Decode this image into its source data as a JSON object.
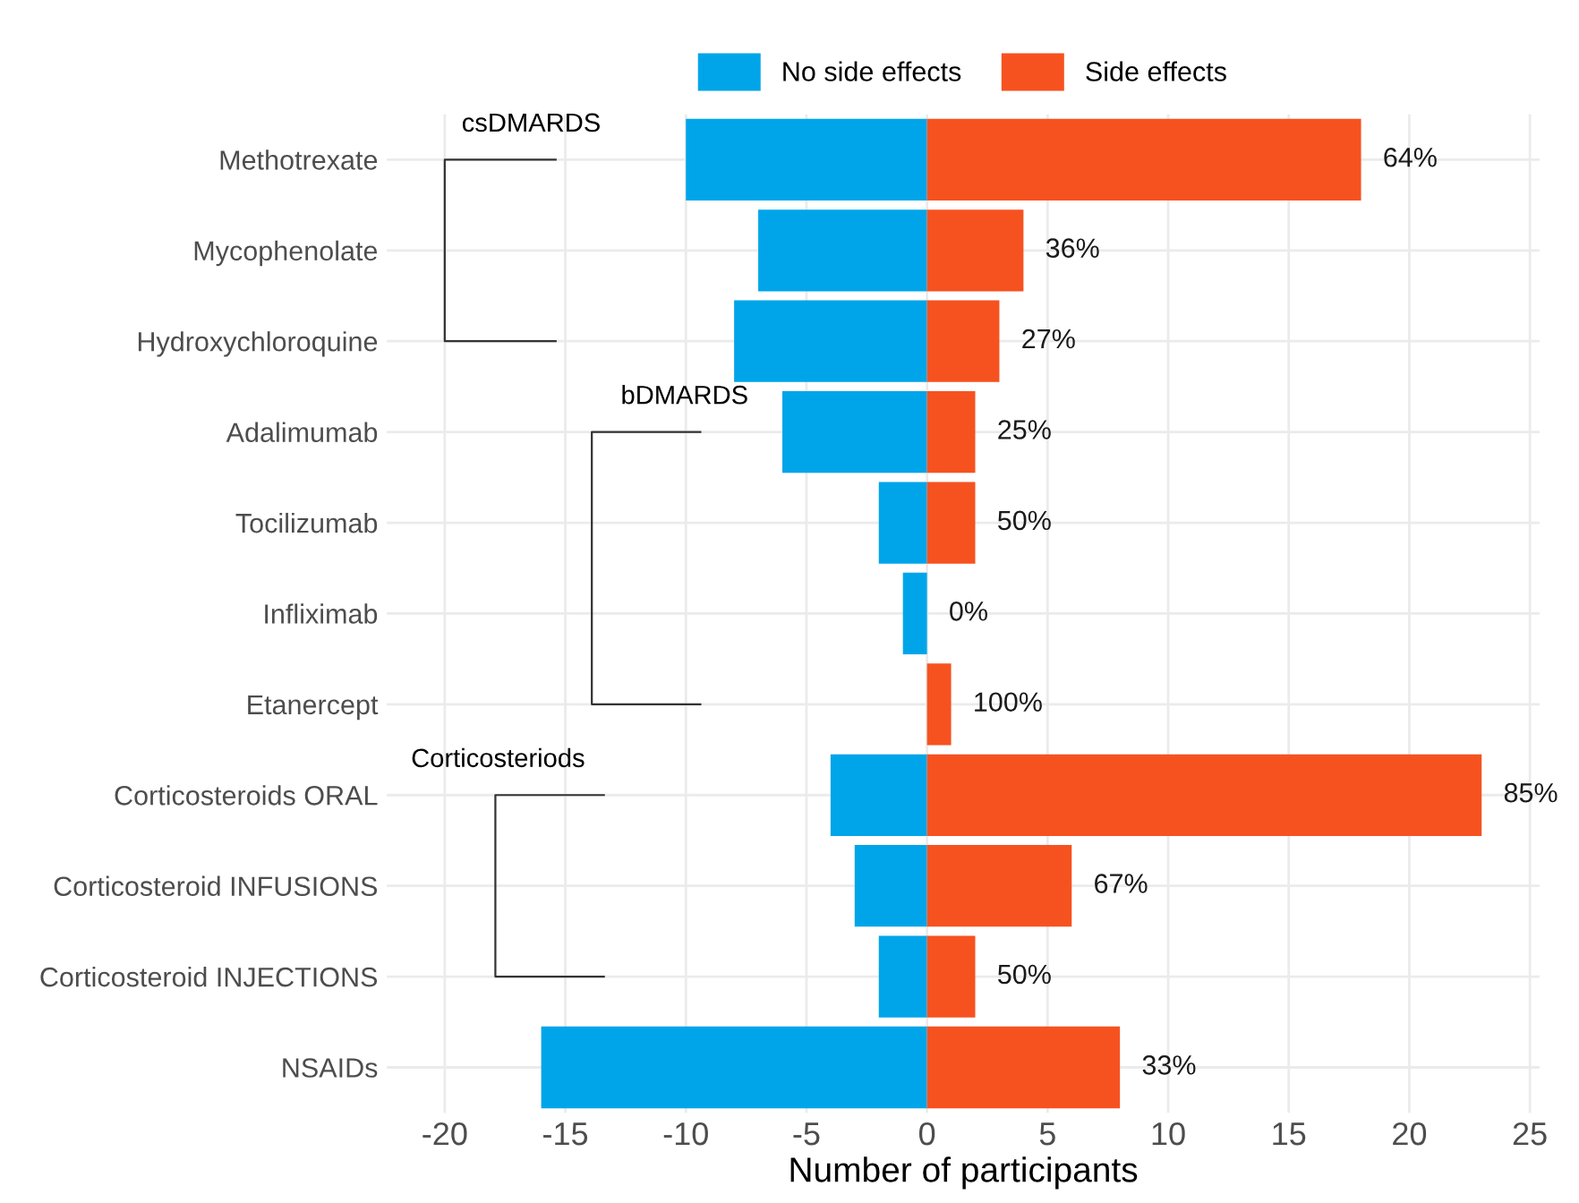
{
  "chart_data": {
    "type": "bar",
    "orientation": "horizontal",
    "stacked": true,
    "xlabel": "Number of participants",
    "categories": [
      "Methotrexate",
      "Mycophenolate",
      "Hydroxychloroquine",
      "Adalimumab",
      "Tocilizumab",
      "Infliximab",
      "Etanercept",
      "Corticosteroids ORAL",
      "Corticosteroid INFUSIONS",
      "Corticosteroid INJECTIONS",
      "NSAIDs"
    ],
    "series": [
      {
        "name": "No side effects",
        "color": "#00a5e9",
        "values": [
          -10,
          -7,
          -8,
          -6,
          -2,
          -1,
          0,
          -4,
          -3,
          -2,
          -16
        ]
      },
      {
        "name": "Side effects",
        "color": "#f65220",
        "values": [
          18,
          4,
          3,
          2,
          2,
          0,
          1,
          23,
          6,
          2,
          8
        ]
      }
    ],
    "xlim": [
      -22.4,
      25.4
    ],
    "xticks": [
      -20,
      -15,
      -10,
      -5,
      0,
      5,
      10,
      15,
      20,
      25
    ],
    "annotations": [
      "csDMARDS",
      "bDMARDS",
      "Corticosteriods",
      {
        "text": "64%",
        "x": 18,
        "y": "Methotrexate"
      },
      {
        "text": "36%",
        "x": 4,
        "y": "Mycophenolate"
      },
      {
        "text": "27%",
        "x": 3,
        "y": "Hydroxychloroquine"
      },
      {
        "text": "25%",
        "x": 2,
        "y": "Adalimumab"
      },
      {
        "text": "50%",
        "x": 2,
        "y": "Tocilizumab"
      },
      {
        "text": "0%",
        "x": 0,
        "y": "Infliximab"
      },
      {
        "text": "100%",
        "x": 1,
        "y": "Etanercept"
      },
      {
        "text": "85%",
        "x": 23,
        "y": "Corticosteroids ORAL"
      },
      {
        "text": "67%",
        "x": 6,
        "y": "Corticosteroid INFUSIONS"
      },
      {
        "text": "50%",
        "x": 2,
        "y": "Corticosteroid INJECTIONS"
      },
      {
        "text": "33%",
        "x": 8,
        "y": "NSAIDs"
      }
    ],
    "grid": true,
    "legend": "top"
  }
}
